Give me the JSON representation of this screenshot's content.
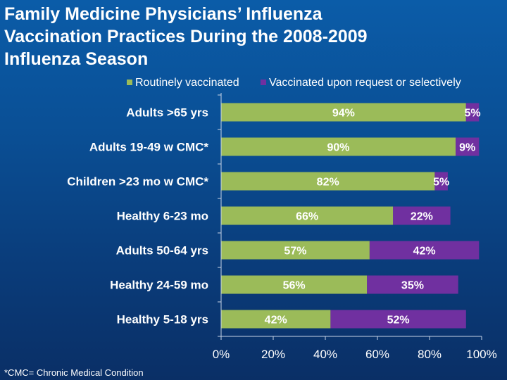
{
  "title": "Family Medicine Physicians’ Influenza\nVaccination Practices During the 2008-2009\nInfluenza Season",
  "footnote": "*CMC= Chronic Medical Condition",
  "colors": {
    "background_top": "#0b5ca8",
    "background_bottom": "#0a2f66",
    "text": "#ffffff",
    "axis": "#c8d4e6"
  },
  "chart_data": {
    "type": "bar",
    "orientation": "horizontal",
    "stacked": true,
    "title": "",
    "xlabel": "",
    "ylabel": "",
    "xlim": [
      0,
      100
    ],
    "x_ticks": [
      "0%",
      "20%",
      "40%",
      "60%",
      "80%",
      "100%"
    ],
    "legend_position": "top",
    "grid": false,
    "categories": [
      "Adults >65 yrs",
      "Adults 19-49 w CMC*",
      "Children >23 mo w CMC*",
      "Healthy 6-23 mo",
      "Adults 50-64 yrs",
      "Healthy 24-59 mo",
      "Healthy 5-18 yrs"
    ],
    "series": [
      {
        "name": "Routinely vaccinated",
        "color": "#9bbb59",
        "values": [
          94,
          90,
          82,
          66,
          57,
          56,
          42
        ],
        "labels": [
          "94%",
          "90%",
          "82%",
          "66%",
          "57%",
          "56%",
          "42%"
        ]
      },
      {
        "name": "Vaccinated upon request or selectively",
        "color": "#7030a0",
        "values": [
          5,
          9,
          5,
          22,
          42,
          35,
          52
        ],
        "labels": [
          "5%",
          "9%",
          "5%",
          "22%",
          "42%",
          "35%",
          "52%"
        ]
      }
    ]
  }
}
